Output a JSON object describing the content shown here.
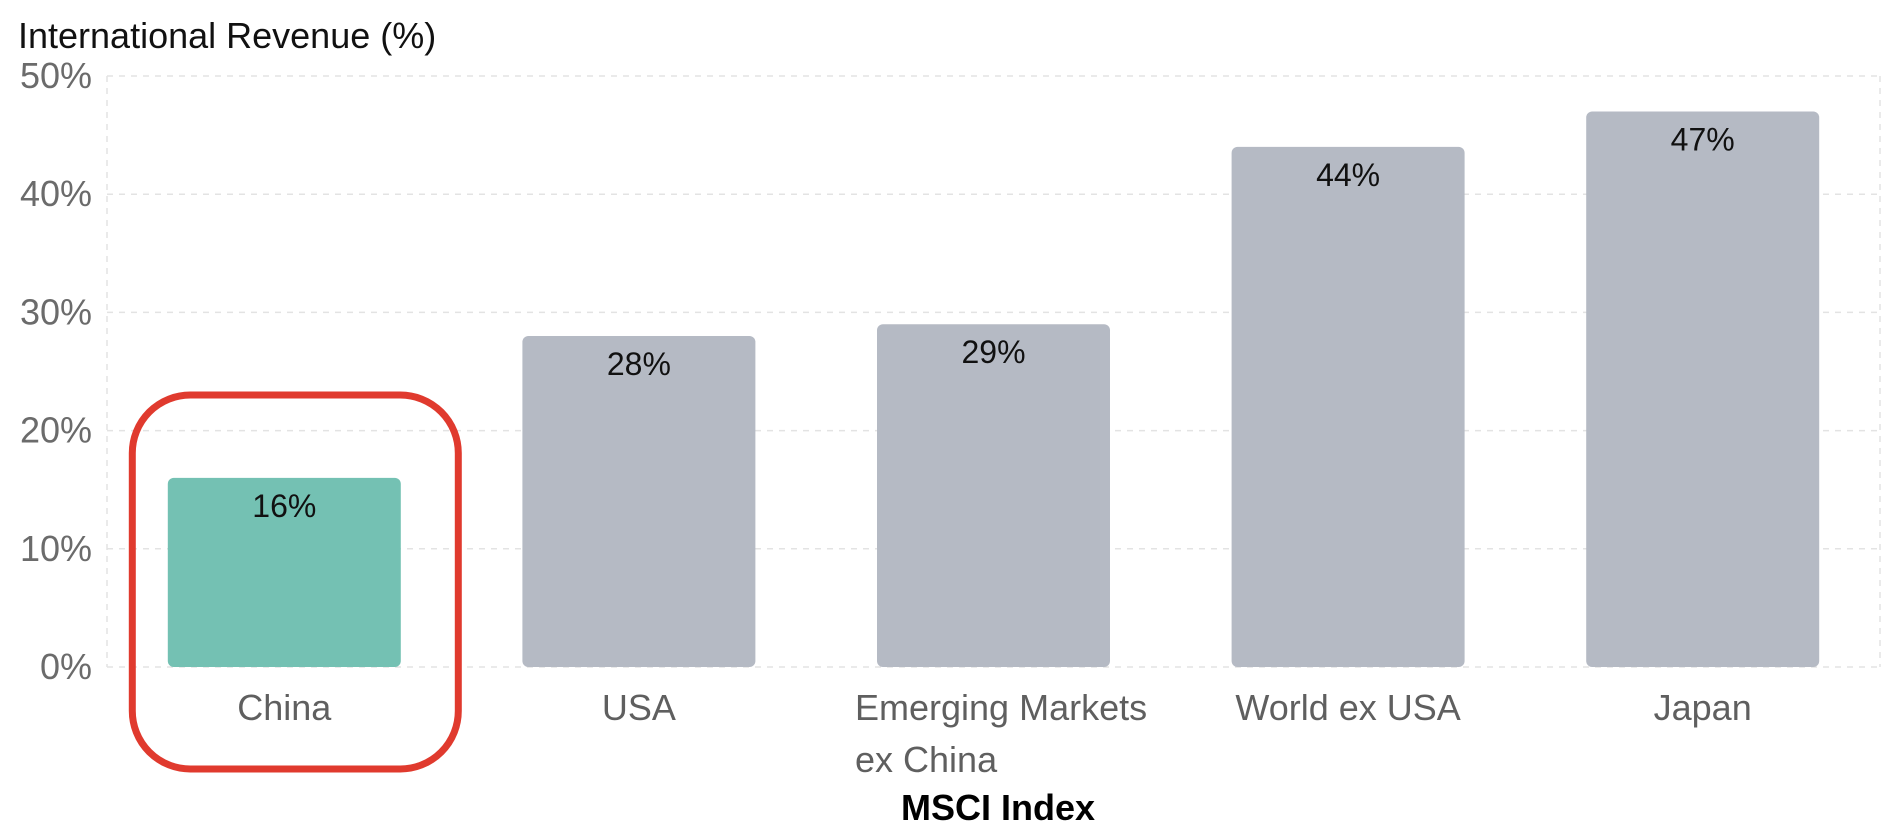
{
  "chart_data": {
    "type": "bar",
    "title": "",
    "ylabel": "International Revenue (%)",
    "xlabel": "MSCI Index",
    "categories": [
      [
        "China"
      ],
      [
        "USA"
      ],
      [
        "Emerging Markets",
        "ex China"
      ],
      [
        "World ex USA"
      ],
      [
        "Japan"
      ]
    ],
    "values": [
      16,
      28,
      29,
      44,
      47
    ],
    "data_labels": [
      "16%",
      "28%",
      "29%",
      "44%",
      "47%"
    ],
    "yticks": [
      {
        "value": 0,
        "label": "0%"
      },
      {
        "value": 10,
        "label": "10%"
      },
      {
        "value": 20,
        "label": "20%"
      },
      {
        "value": 30,
        "label": "30%"
      },
      {
        "value": 40,
        "label": "40%"
      },
      {
        "value": 50,
        "label": "50%"
      }
    ],
    "ylim": [
      0,
      50
    ],
    "grid": true,
    "highlight_index": 0,
    "colors": {
      "highlight_bar": "#74c1b3",
      "bar": "#b5bac4",
      "highlight_box": "#e03a2e",
      "grid": "#e3e3e3"
    }
  }
}
